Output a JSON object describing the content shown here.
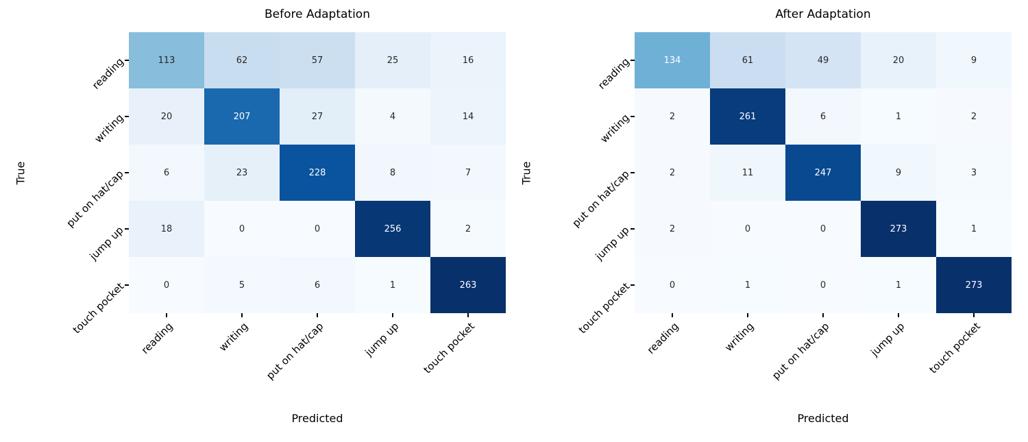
{
  "chart_data": [
    {
      "type": "heatmap",
      "title": "Before Adaptation",
      "xlabel": "Predicted",
      "ylabel": "True",
      "categories": [
        "reading",
        "writing",
        "put on hat/cap",
        "jump up",
        "touch pocket"
      ],
      "matrix": [
        [
          113,
          62,
          57,
          25,
          16
        ],
        [
          20,
          207,
          27,
          4,
          14
        ],
        [
          6,
          23,
          228,
          8,
          7
        ],
        [
          18,
          0,
          0,
          256,
          2
        ],
        [
          0,
          5,
          6,
          1,
          263
        ]
      ],
      "vmin": 0,
      "vmax": 263,
      "colormap": "Blues",
      "legend": "none",
      "grid": false
    },
    {
      "type": "heatmap",
      "title": "After Adaptation",
      "xlabel": "Predicted",
      "ylabel": "True",
      "categories": [
        "reading",
        "writing",
        "put on hat/cap",
        "jump up",
        "touch pocket"
      ],
      "matrix": [
        [
          134,
          61,
          49,
          20,
          9
        ],
        [
          2,
          261,
          6,
          1,
          2
        ],
        [
          2,
          11,
          247,
          9,
          3
        ],
        [
          2,
          0,
          0,
          273,
          1
        ],
        [
          0,
          1,
          0,
          1,
          273
        ]
      ],
      "vmin": 0,
      "vmax": 273,
      "colormap": "Blues",
      "legend": "none",
      "grid": false
    }
  ],
  "colors": {
    "background": "#ffffff",
    "annot_dark": "#262626",
    "annot_light": "#ffffff",
    "tick": "#000000",
    "blues_stops": [
      [
        247,
        251,
        255
      ],
      [
        222,
        235,
        247
      ],
      [
        198,
        219,
        239
      ],
      [
        158,
        202,
        225
      ],
      [
        107,
        174,
        214
      ],
      [
        66,
        146,
        198
      ],
      [
        33,
        113,
        181
      ],
      [
        8,
        81,
        156
      ],
      [
        8,
        48,
        107
      ]
    ],
    "luminance_white_text_threshold": 0.408
  }
}
